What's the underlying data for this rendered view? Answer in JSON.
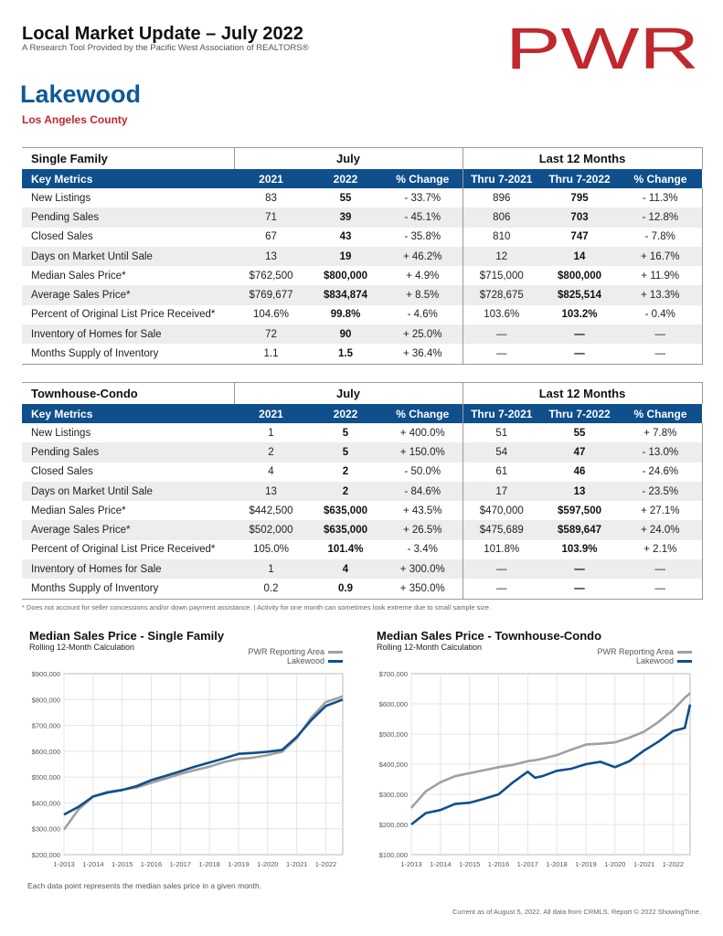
{
  "header": {
    "title": "Local Market Update – July 2022",
    "subtitle": "A Research Tool Provided by the Pacific West Association of REALTORS®",
    "logo_text": "PWR",
    "city": "Lakewood",
    "county": "Los Angeles County",
    "brand_red": "#c0282d",
    "brand_blue": "#0f5a95"
  },
  "tables": [
    {
      "section": "Single Family",
      "group_july": "July",
      "group_12m": "Last 12 Months",
      "columns": [
        "Key Metrics",
        "2021",
        "2022",
        "% Change",
        "Thru 7-2021",
        "Thru 7-2022",
        "% Change"
      ],
      "rows": [
        [
          "New Listings",
          "83",
          "55",
          "- 33.7%",
          "896",
          "795",
          "- 11.3%"
        ],
        [
          "Pending Sales",
          "71",
          "39",
          "- 45.1%",
          "806",
          "703",
          "- 12.8%"
        ],
        [
          "Closed Sales",
          "67",
          "43",
          "- 35.8%",
          "810",
          "747",
          "- 7.8%"
        ],
        [
          "Days on Market Until Sale",
          "13",
          "19",
          "+ 46.2%",
          "12",
          "14",
          "+ 16.7%"
        ],
        [
          "Median Sales Price*",
          "$762,500",
          "$800,000",
          "+ 4.9%",
          "$715,000",
          "$800,000",
          "+ 11.9%"
        ],
        [
          "Average Sales Price*",
          "$769,677",
          "$834,874",
          "+ 8.5%",
          "$728,675",
          "$825,514",
          "+ 13.3%"
        ],
        [
          "Percent of Original List Price Received*",
          "104.6%",
          "99.8%",
          "- 4.6%",
          "103.6%",
          "103.2%",
          "- 0.4%"
        ],
        [
          "Inventory of Homes for Sale",
          "72",
          "90",
          "+ 25.0%",
          "—",
          "—",
          "—"
        ],
        [
          "Months Supply of Inventory",
          "1.1",
          "1.5",
          "+ 36.4%",
          "—",
          "—",
          "—"
        ]
      ]
    },
    {
      "section": "Townhouse-Condo",
      "group_july": "July",
      "group_12m": "Last 12 Months",
      "columns": [
        "Key Metrics",
        "2021",
        "2022",
        "% Change",
        "Thru 7-2021",
        "Thru 7-2022",
        "% Change"
      ],
      "rows": [
        [
          "New Listings",
          "1",
          "5",
          "+ 400.0%",
          "51",
          "55",
          "+ 7.8%"
        ],
        [
          "Pending Sales",
          "2",
          "5",
          "+ 150.0%",
          "54",
          "47",
          "- 13.0%"
        ],
        [
          "Closed Sales",
          "4",
          "2",
          "- 50.0%",
          "61",
          "46",
          "- 24.6%"
        ],
        [
          "Days on Market Until Sale",
          "13",
          "2",
          "- 84.6%",
          "17",
          "13",
          "- 23.5%"
        ],
        [
          "Median Sales Price*",
          "$442,500",
          "$635,000",
          "+ 43.5%",
          "$470,000",
          "$597,500",
          "+ 27.1%"
        ],
        [
          "Average Sales Price*",
          "$502,000",
          "$635,000",
          "+ 26.5%",
          "$475,689",
          "$589,647",
          "+ 24.0%"
        ],
        [
          "Percent of Original List Price Received*",
          "105.0%",
          "101.4%",
          "- 3.4%",
          "101.8%",
          "103.9%",
          "+ 2.1%"
        ],
        [
          "Inventory of Homes for Sale",
          "1",
          "4",
          "+ 300.0%",
          "—",
          "—",
          "—"
        ],
        [
          "Months Supply of Inventory",
          "0.2",
          "0.9",
          "+ 350.0%",
          "—",
          "—",
          "—"
        ]
      ]
    }
  ],
  "footnote": "* Does not account for seller concessions and/or down payment assistance. | Activity for one month can sometimes look extreme due to small sample size.",
  "chart_note": "Each data point represents the median sales price in a given month.",
  "current_note": "Current as of August 5, 2022. All data from CRMLS. Report © 2022 ShowingTime.",
  "chart_data": [
    {
      "type": "line",
      "title": "Median Sales Price - Single Family",
      "subtitle": "Rolling 12-Month Calculation",
      "x_ticks": [
        "1-2013",
        "1-2014",
        "1-2015",
        "1-2016",
        "1-2017",
        "1-2018",
        "1-2019",
        "1-2020",
        "1-2021",
        "1-2022"
      ],
      "y_ticks": [
        "$200,000",
        "$300,000",
        "$400,000",
        "$500,000",
        "$600,000",
        "$700,000",
        "$800,000",
        "$900,000"
      ],
      "ylim": [
        200000,
        900000
      ],
      "x_range": [
        2013.0,
        2022.583
      ],
      "x": [
        2013.0,
        2013.5,
        2014.0,
        2014.5,
        2015.0,
        2015.5,
        2016.0,
        2016.5,
        2017.0,
        2017.5,
        2018.0,
        2018.5,
        2019.0,
        2019.5,
        2020.0,
        2020.5,
        2021.0,
        2021.5,
        2022.0,
        2022.583
      ],
      "series": [
        {
          "name": "PWR Reporting Area",
          "color": "#a0a0a0",
          "values": [
            297000,
            375000,
            425000,
            443000,
            451000,
            460000,
            478000,
            495000,
            512000,
            527000,
            540000,
            558000,
            570000,
            575000,
            585000,
            598000,
            650000,
            730000,
            790000,
            812000
          ]
        },
        {
          "name": "Lakewood",
          "color": "#0f4f8c",
          "values": [
            355000,
            385000,
            425000,
            440000,
            450000,
            465000,
            488000,
            505000,
            522000,
            540000,
            556000,
            572000,
            590000,
            593000,
            598000,
            605000,
            655000,
            720000,
            775000,
            800000
          ]
        }
      ]
    },
    {
      "type": "line",
      "title": "Median Sales Price - Townhouse-Condo",
      "subtitle": "Rolling 12-Month Calculation",
      "x_ticks": [
        "1-2013",
        "1-2014",
        "1-2015",
        "1-2016",
        "1-2017",
        "1-2018",
        "1-2019",
        "1-2020",
        "1-2021",
        "1-2022"
      ],
      "y_ticks": [
        "$100,000",
        "$200,000",
        "$300,000",
        "$400,000",
        "$500,000",
        "$600,000",
        "$700,000"
      ],
      "ylim": [
        100000,
        700000
      ],
      "x_range": [
        2013.0,
        2022.583
      ],
      "x": [
        2013.0,
        2013.5,
        2014.0,
        2014.5,
        2015.0,
        2015.5,
        2016.0,
        2016.5,
        2017.0,
        2017.25,
        2017.5,
        2018.0,
        2018.5,
        2019.0,
        2019.5,
        2020.0,
        2020.5,
        2021.0,
        2021.5,
        2022.0,
        2022.4,
        2022.583
      ],
      "series": [
        {
          "name": "PWR Reporting Area",
          "color": "#a0a0a0",
          "values": [
            255000,
            310000,
            340000,
            360000,
            370000,
            380000,
            390000,
            398000,
            410000,
            413000,
            418000,
            430000,
            448000,
            465000,
            468000,
            472000,
            488000,
            508000,
            540000,
            580000,
            620000,
            635000
          ]
        },
        {
          "name": "Lakewood",
          "color": "#0f4f8c",
          "values": [
            200000,
            238000,
            248000,
            268000,
            272000,
            285000,
            300000,
            340000,
            375000,
            355000,
            360000,
            378000,
            385000,
            400000,
            408000,
            390000,
            410000,
            445000,
            475000,
            510000,
            520000,
            597500
          ]
        }
      ]
    }
  ]
}
